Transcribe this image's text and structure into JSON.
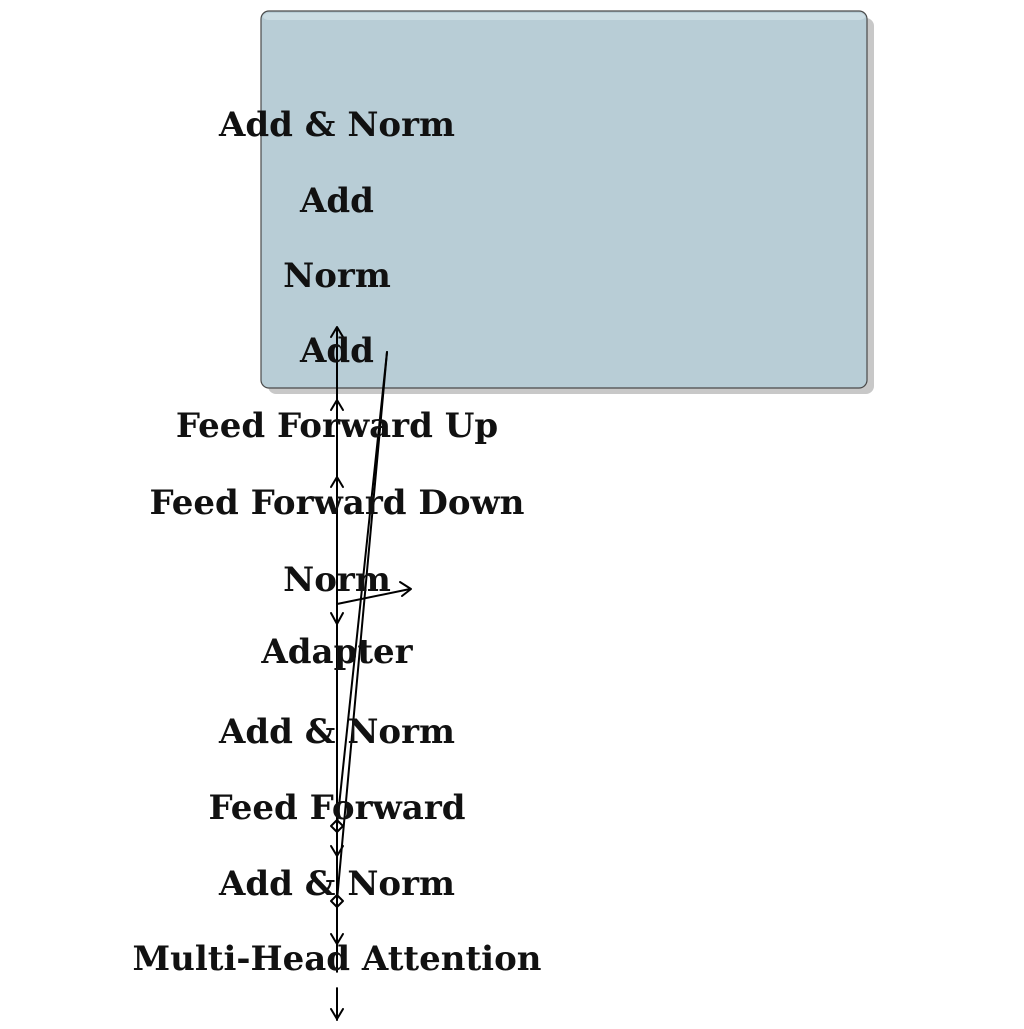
{
  "colors": {
    "box_fill": "#b8cdd6",
    "box_stroke": "#4a4a4a",
    "shadow": "#9a9a9a",
    "arrow": "#000000",
    "text": "#111111"
  },
  "labels": [
    "Add & Norm",
    "Add",
    "Norm",
    "Add",
    "Feed Forward Up",
    "Feed Forward Down",
    "Norm",
    "Adapter",
    "Add & Norm",
    "Feed Forward",
    "Add & Norm",
    "Multi-Head Attention"
  ]
}
